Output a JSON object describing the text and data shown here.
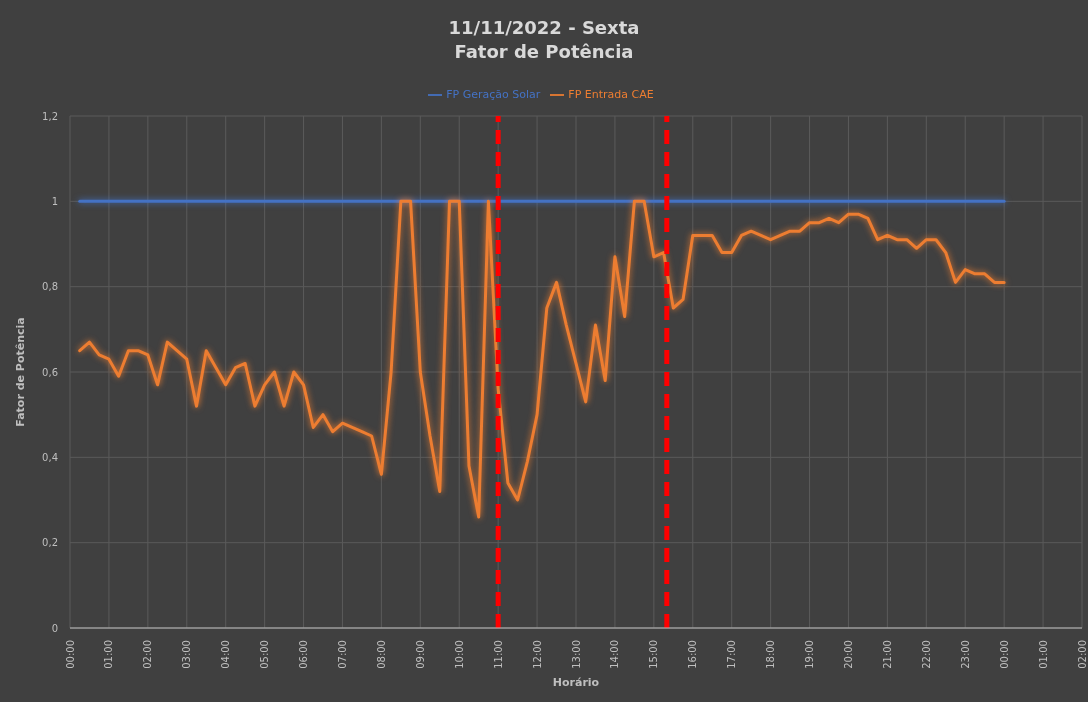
{
  "chart_data": {
    "type": "line",
    "title": "11/11/2022 - Sexta",
    "subtitle": "Fator de Potência",
    "xlabel": "Horário",
    "ylabel": "Fator de Potência",
    "series": [
      {
        "name": "FP Geração Solar",
        "color": "#4472c4",
        "x": [
          "2022-11-11T00:15",
          "2022-11-12T00:00"
        ],
        "values": [
          1,
          1
        ]
      },
      {
        "name": "FP Entrada CAE",
        "color": "#ed7d31",
        "x": [
          "2022-11-11T00:15",
          "2022-11-11T00:30",
          "2022-11-11T00:45",
          "2022-11-11T01:00",
          "2022-11-11T01:15",
          "2022-11-11T01:30",
          "2022-11-11T01:45",
          "2022-11-11T02:00",
          "2022-11-11T02:15",
          "2022-11-11T02:30",
          "2022-11-11T02:45",
          "2022-11-11T03:00",
          "2022-11-11T03:15",
          "2022-11-11T03:30",
          "2022-11-11T03:45",
          "2022-11-11T04:00",
          "2022-11-11T04:15",
          "2022-11-11T04:30",
          "2022-11-11T04:45",
          "2022-11-11T05:00",
          "2022-11-11T05:15",
          "2022-11-11T05:30",
          "2022-11-11T05:45",
          "2022-11-11T06:00",
          "2022-11-11T06:15",
          "2022-11-11T06:30",
          "2022-11-11T06:45",
          "2022-11-11T07:00",
          "2022-11-11T07:15",
          "2022-11-11T07:30",
          "2022-11-11T07:45",
          "2022-11-11T08:00",
          "2022-11-11T08:15",
          "2022-11-11T08:30",
          "2022-11-11T08:45",
          "2022-11-11T09:00",
          "2022-11-11T09:15",
          "2022-11-11T09:30",
          "2022-11-11T09:45",
          "2022-11-11T10:00",
          "2022-11-11T10:15",
          "2022-11-11T10:30",
          "2022-11-11T10:45",
          "2022-11-11T11:00",
          "2022-11-11T11:15",
          "2022-11-11T11:30",
          "2022-11-11T11:45",
          "2022-11-11T12:00",
          "2022-11-11T12:15",
          "2022-11-11T12:30",
          "2022-11-11T12:45",
          "2022-11-11T13:00",
          "2022-11-11T13:15",
          "2022-11-11T13:30",
          "2022-11-11T13:45",
          "2022-11-11T14:00",
          "2022-11-11T14:15",
          "2022-11-11T14:30",
          "2022-11-11T14:45",
          "2022-11-11T15:00",
          "2022-11-11T15:15",
          "2022-11-11T15:30",
          "2022-11-11T15:45",
          "2022-11-11T16:00",
          "2022-11-11T16:15",
          "2022-11-11T16:30",
          "2022-11-11T16:45",
          "2022-11-11T17:00",
          "2022-11-11T17:15",
          "2022-11-11T17:30",
          "2022-11-11T17:45",
          "2022-11-11T18:00",
          "2022-11-11T18:15",
          "2022-11-11T18:30",
          "2022-11-11T18:45",
          "2022-11-11T19:00",
          "2022-11-11T19:15",
          "2022-11-11T19:30",
          "2022-11-11T19:45",
          "2022-11-11T20:00",
          "2022-11-11T20:15",
          "2022-11-11T20:30",
          "2022-11-11T20:45",
          "2022-11-11T21:00",
          "2022-11-11T21:15",
          "2022-11-11T21:30",
          "2022-11-11T21:45",
          "2022-11-11T22:00",
          "2022-11-11T22:15",
          "2022-11-11T22:30",
          "2022-11-11T22:45",
          "2022-11-11T23:00",
          "2022-11-11T23:15",
          "2022-11-11T23:30",
          "2022-11-11T23:45",
          "2022-11-12T00:00"
        ],
        "values": [
          0.65,
          0.67,
          0.64,
          0.63,
          0.59,
          0.65,
          0.65,
          0.64,
          0.57,
          0.67,
          0.65,
          0.63,
          0.52,
          0.65,
          0.61,
          0.57,
          0.61,
          0.62,
          0.52,
          0.57,
          0.6,
          0.52,
          0.6,
          0.57,
          0.47,
          0.5,
          0.46,
          0.48,
          0.47,
          0.46,
          0.45,
          0.36,
          0.6,
          1,
          1,
          0.6,
          0.45,
          0.32,
          1,
          1,
          0.38,
          0.26,
          1,
          0.56,
          0.34,
          0.3,
          0.39,
          0.5,
          0.75,
          0.81,
          0.71,
          0.62,
          0.53,
          0.71,
          0.58,
          0.87,
          0.73,
          1,
          1,
          0.87,
          0.88,
          0.75,
          0.77,
          0.92,
          0.92,
          0.92,
          0.88,
          0.88,
          0.92,
          0.93,
          0.92,
          0.91,
          0.92,
          0.93,
          0.93,
          0.95,
          0.95,
          0.96,
          0.95,
          0.97,
          0.97,
          0.96,
          0.91,
          0.92,
          0.91,
          0.91,
          0.89,
          0.91,
          0.91,
          0.88,
          0.81,
          0.84,
          0.83,
          0.83,
          0.81,
          0.81
        ]
      }
    ],
    "xlim": [
      "2022-11-11T00:00",
      "2022-11-12T02:00"
    ],
    "xticks": [
      {
        "value": "2022-11-11T00:00",
        "label": "00:00"
      },
      {
        "value": "2022-11-11T01:00",
        "label": "01:00"
      },
      {
        "value": "2022-11-11T02:00",
        "label": "02:00"
      },
      {
        "value": "2022-11-11T03:00",
        "label": "03:00"
      },
      {
        "value": "2022-11-11T04:00",
        "label": "04:00"
      },
      {
        "value": "2022-11-11T05:00",
        "label": "05:00"
      },
      {
        "value": "2022-11-11T06:00",
        "label": "06:00"
      },
      {
        "value": "2022-11-11T07:00",
        "label": "07:00"
      },
      {
        "value": "2022-11-11T08:00",
        "label": "08:00"
      },
      {
        "value": "2022-11-11T09:00",
        "label": "09:00"
      },
      {
        "value": "2022-11-11T10:00",
        "label": "10:00"
      },
      {
        "value": "2022-11-11T11:00",
        "label": "11:00"
      },
      {
        "value": "2022-11-11T12:00",
        "label": "12:00"
      },
      {
        "value": "2022-11-11T13:00",
        "label": "13:00"
      },
      {
        "value": "2022-11-11T14:00",
        "label": "14:00"
      },
      {
        "value": "2022-11-11T15:00",
        "label": "15:00"
      },
      {
        "value": "2022-11-11T16:00",
        "label": "16:00"
      },
      {
        "value": "2022-11-11T17:00",
        "label": "17:00"
      },
      {
        "value": "2022-11-11T18:00",
        "label": "18:00"
      },
      {
        "value": "2022-11-11T19:00",
        "label": "19:00"
      },
      {
        "value": "2022-11-11T20:00",
        "label": "20:00"
      },
      {
        "value": "2022-11-11T21:00",
        "label": "21:00"
      },
      {
        "value": "2022-11-11T22:00",
        "label": "22:00"
      },
      {
        "value": "2022-11-11T23:00",
        "label": "23:00"
      },
      {
        "value": "2022-11-12T00:00",
        "label": "00:00"
      },
      {
        "value": "2022-11-12T01:00",
        "label": "01:00"
      },
      {
        "value": "2022-11-12T02:00",
        "label": "02:00"
      }
    ],
    "ylim": [
      0,
      1.2
    ],
    "yticks": [
      0,
      {
        "value": 0.2,
        "label": "0,2"
      },
      {
        "value": 0.4,
        "label": "0,4"
      },
      {
        "value": 0.6,
        "label": "0,6"
      },
      {
        "value": 0.8,
        "label": "0,8"
      },
      1,
      {
        "value": 1.2,
        "label": "1,2"
      }
    ],
    "grid": true,
    "legend": "top",
    "ref_lines": [
      {
        "axis": "x",
        "value": "2022-11-11T11:00",
        "color": "#ff0000",
        "line_style": "dashed"
      },
      {
        "axis": "x",
        "value": "2022-11-11T15:20",
        "color": "#ff0000",
        "line_style": "dashed"
      }
    ]
  }
}
